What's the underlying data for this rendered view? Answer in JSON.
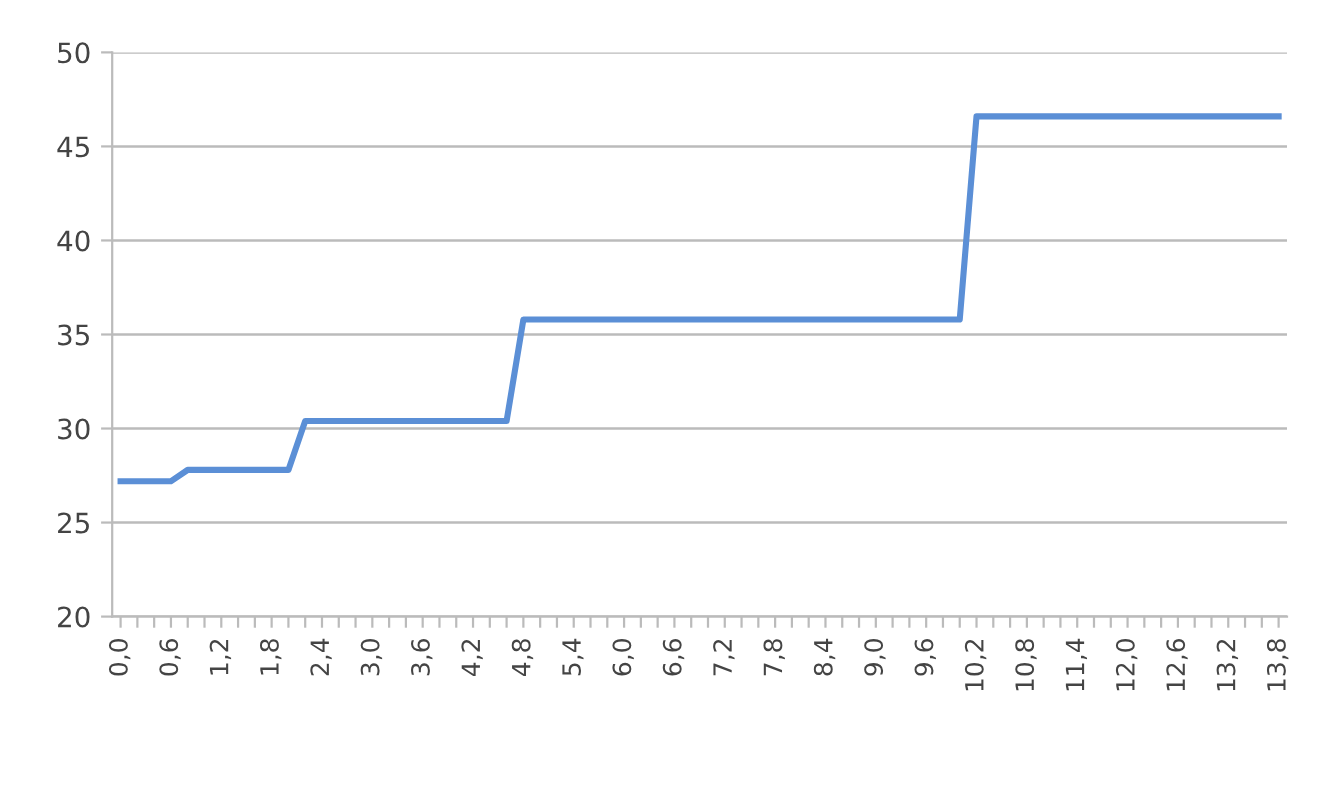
{
  "chart_data": {
    "type": "line",
    "categories": [
      "0,0",
      null,
      null,
      "0,6",
      null,
      null,
      "1,2",
      null,
      null,
      "1,8",
      null,
      null,
      "2,4",
      null,
      null,
      "3,0",
      null,
      null,
      "3,6",
      null,
      null,
      "4,2",
      null,
      null,
      "4,8",
      null,
      null,
      "5,4",
      null,
      null,
      "6,0",
      null,
      null,
      "6,6",
      null,
      null,
      "7,2",
      null,
      null,
      "7,8",
      null,
      null,
      "8,4",
      null,
      null,
      "9,0",
      null,
      null,
      "9,6",
      null,
      null,
      "10,2",
      null,
      null,
      "10,8",
      null,
      null,
      "11,4",
      null,
      null,
      "12,0",
      null,
      null,
      "12,6",
      null,
      null,
      "13,2",
      null,
      null,
      "13,8"
    ],
    "series": [
      {
        "color": "#5b8fd6",
        "values": [
          27.2,
          27.2,
          27.2,
          27.2,
          27.8,
          27.8,
          27.8,
          27.8,
          27.8,
          27.8,
          27.8,
          30.4,
          30.4,
          30.4,
          30.4,
          30.4,
          30.4,
          30.4,
          30.4,
          30.4,
          30.4,
          30.4,
          30.4,
          30.4,
          35.8,
          35.8,
          35.8,
          35.8,
          35.8,
          35.8,
          35.8,
          35.8,
          35.8,
          35.8,
          35.8,
          35.8,
          35.8,
          35.8,
          35.8,
          35.8,
          35.8,
          35.8,
          35.8,
          35.8,
          35.8,
          35.8,
          35.8,
          35.8,
          35.8,
          35.8,
          35.8,
          46.6,
          46.6,
          46.6,
          46.6,
          46.6,
          46.6,
          46.6,
          46.6,
          46.6,
          46.6,
          46.6,
          46.6,
          46.6,
          46.6,
          46.6,
          46.6,
          46.6,
          46.6,
          46.6
        ]
      }
    ],
    "ylim": [
      20,
      50
    ],
    "yticks": [
      20,
      25,
      30,
      35,
      40,
      45,
      50
    ],
    "grid": "y",
    "marker": "none",
    "line_style": "solid"
  }
}
